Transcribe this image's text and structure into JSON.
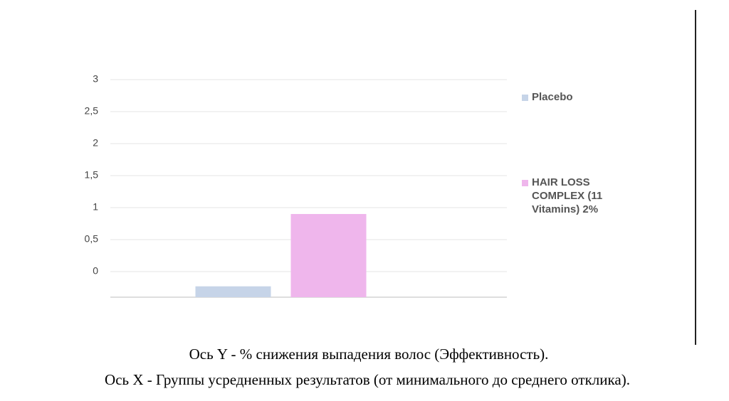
{
  "chart_data": {
    "type": "bar",
    "categories": [
      null
    ],
    "series": [
      {
        "name": "Placebo",
        "color": "#c6d4e8",
        "values": [
          -0.23
        ]
      },
      {
        "name": "HAIR LOSS COMPLEX (11 Vitamins) 2%",
        "color": "#efb6ec",
        "values": [
          0.9
        ]
      }
    ],
    "ylim": [
      -0.4,
      3
    ],
    "yticks": [
      0,
      {
        "value": 0.5,
        "label": "0,5"
      },
      1,
      {
        "value": 1.5,
        "label": "1,5"
      },
      2,
      {
        "value": 2.5,
        "label": "2,5"
      },
      3
    ],
    "grid": true,
    "legend": "right",
    "y_axis_label": "Ось Y -  % снижения выпадения волос (Эффективность).",
    "x_axis_label": "Ось X -  Группы усредненных результатов (от минимального до среднего отклика)."
  }
}
